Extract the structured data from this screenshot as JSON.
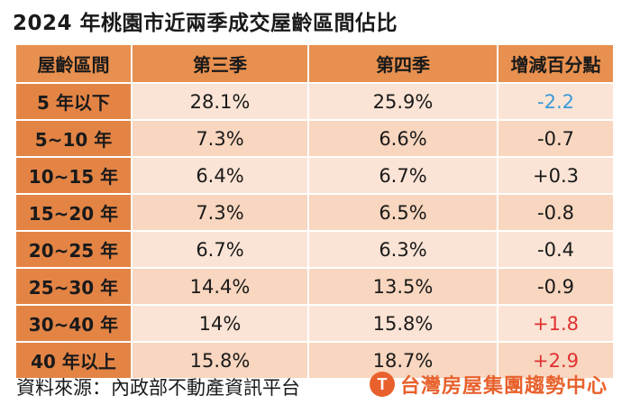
{
  "title": "2024 年桃園市近兩季成交屋齡區間佔比",
  "table": {
    "headers": [
      "屋齡區間",
      "第三季",
      "第四季",
      "增減百分點"
    ],
    "rows": [
      {
        "range": "5 年以下",
        "q3": "28.1%",
        "q4": "25.9%",
        "change": "-2.2",
        "change_color": "#3a9ad9"
      },
      {
        "range": "5~10 年",
        "q3": "7.3%",
        "q4": "6.6%",
        "change": "-0.7",
        "change_color": "#1a1a1a"
      },
      {
        "range": "10~15 年",
        "q3": "6.4%",
        "q4": "6.7%",
        "change": "+0.3",
        "change_color": "#1a1a1a"
      },
      {
        "range": "15~20 年",
        "q3": "7.3%",
        "q4": "6.5%",
        "change": "-0.8",
        "change_color": "#1a1a1a"
      },
      {
        "range": "20~25 年",
        "q3": "6.7%",
        "q4": "6.3%",
        "change": "-0.4",
        "change_color": "#1a1a1a"
      },
      {
        "range": "25~30 年",
        "q3": "14.4%",
        "q4": "13.5%",
        "change": "-0.9",
        "change_color": "#1a1a1a"
      },
      {
        "range": "30~40 年",
        "q3": "14%",
        "q4": "15.8%",
        "change": "+1.8",
        "change_color": "#e03030"
      },
      {
        "range": "40 年以上",
        "q3": "15.8%",
        "q4": "18.7%",
        "change": "+2.9",
        "change_color": "#e03030"
      }
    ]
  },
  "source": "資料來源：內政部不動產資訊平台",
  "brand": {
    "logo_letter": "T",
    "name": "台灣房屋集團趨勢中心",
    "color": "#e8612c"
  }
}
